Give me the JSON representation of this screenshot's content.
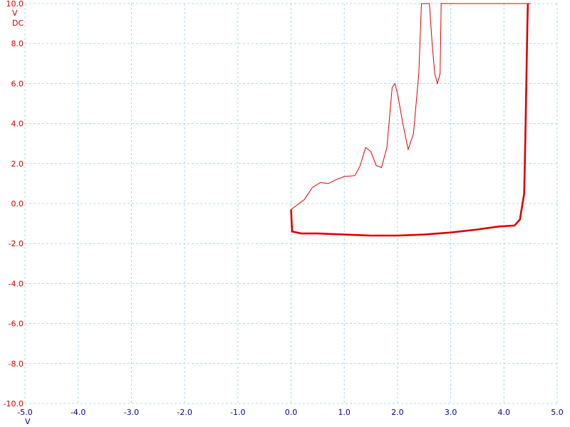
{
  "chart_data": {
    "type": "line",
    "title": "",
    "xlabel": "V",
    "ylabel": "V",
    "ycoupling": "DC",
    "xlim": [
      -5.0,
      5.0
    ],
    "ylim": [
      -10.0,
      10.0
    ],
    "grid": true,
    "x_ticks": [
      "-5.0",
      "-4.0",
      "-3.0",
      "-2.0",
      "-1.0",
      "0.0",
      "1.0",
      "2.0",
      "3.0",
      "4.0",
      "5.0"
    ],
    "y_ticks": [
      "10.0",
      "8.0",
      "6.0",
      "4.0",
      "2.0",
      "0.0",
      "-2.0",
      "-4.0",
      "-6.0",
      "-8.0",
      "-10.0"
    ],
    "colors": {
      "trace": "#dd0000",
      "grid": "#a8d8e8",
      "y_axis_text": "#cc0000",
      "x_axis_text": "#000099"
    },
    "series": [
      {
        "lower_branch": [
          [
            0.0,
            -0.3
          ],
          [
            0.02,
            -1.4
          ],
          [
            0.2,
            -1.5
          ],
          [
            0.5,
            -1.5
          ],
          [
            1.0,
            -1.55
          ],
          [
            1.5,
            -1.6
          ],
          [
            2.0,
            -1.6
          ],
          [
            2.5,
            -1.55
          ],
          [
            3.0,
            -1.45
          ],
          [
            3.5,
            -1.3
          ],
          [
            3.9,
            -1.15
          ],
          [
            4.2,
            -1.1
          ],
          [
            4.3,
            -0.8
          ],
          [
            4.38,
            0.5
          ],
          [
            4.4,
            3.0
          ],
          [
            4.42,
            6.0
          ],
          [
            4.44,
            9.0
          ],
          [
            4.45,
            10.0
          ]
        ],
        "upper_branch": [
          [
            0.0,
            -0.3
          ],
          [
            0.1,
            -0.1
          ],
          [
            0.25,
            0.2
          ],
          [
            0.4,
            0.8
          ],
          [
            0.55,
            1.05
          ],
          [
            0.7,
            1.0
          ],
          [
            0.85,
            1.2
          ],
          [
            1.0,
            1.35
          ],
          [
            1.2,
            1.4
          ],
          [
            1.3,
            1.9
          ],
          [
            1.4,
            2.8
          ],
          [
            1.5,
            2.6
          ],
          [
            1.6,
            1.9
          ],
          [
            1.7,
            1.8
          ],
          [
            1.8,
            2.8
          ],
          [
            1.9,
            5.8
          ],
          [
            1.95,
            6.0
          ],
          [
            2.0,
            5.5
          ],
          [
            2.1,
            4.0
          ],
          [
            2.2,
            2.7
          ],
          [
            2.3,
            3.5
          ],
          [
            2.4,
            6.5
          ],
          [
            2.45,
            10.0
          ],
          [
            2.6,
            10.0
          ],
          [
            2.65,
            8.0
          ],
          [
            2.7,
            6.5
          ],
          [
            2.75,
            6.0
          ],
          [
            2.8,
            6.5
          ],
          [
            2.82,
            10.0
          ],
          [
            4.5,
            10.0
          ]
        ]
      }
    ]
  }
}
